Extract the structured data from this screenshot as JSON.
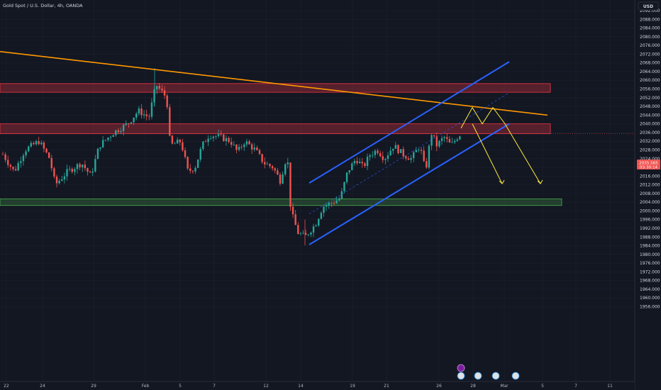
{
  "header": {
    "symbol_title": "Gold Spot / U.S. Dollar, 4h, OANDA"
  },
  "currency_button": "USD",
  "price_label": {
    "price": "2035.565",
    "countdown": "03:30:14"
  },
  "colors": {
    "background": "#131722",
    "up": "#26a69a",
    "down": "#ef5350",
    "channel": "#2962ff",
    "trendline": "#ff9800",
    "projection": "#ffeb3b",
    "resistance_zone": "#f23645",
    "support_zone": "#4caf50",
    "axis_text": "#d1d4dc"
  },
  "chart_data": {
    "type": "candlestick",
    "title": "Gold Spot / U.S. Dollar, 4h, OANDA",
    "timeframe": "4h",
    "y_axis": {
      "unit": "USD",
      "range": [
        1953,
        2094
      ],
      "ticks": [
        "2092.000",
        "2088.000",
        "2084.000",
        "2080.000",
        "2076.000",
        "2072.000",
        "2068.000",
        "2064.000",
        "2060.000",
        "2056.000",
        "2052.000",
        "2048.000",
        "2044.000",
        "2040.000",
        "2036.000",
        "2032.000",
        "2028.000",
        "2024.000",
        "2020.000",
        "2016.000",
        "2012.000",
        "2008.000",
        "2004.000",
        "2000.000",
        "1996.000",
        "1992.000",
        "1988.000",
        "1984.000",
        "1980.000",
        "1976.000",
        "1972.000",
        "1968.000",
        "1964.000",
        "1960.000",
        "1956.000"
      ]
    },
    "x_axis": {
      "ticks": [
        "22",
        "24",
        "29",
        "Feb",
        "5",
        "7",
        "12",
        "14",
        "19",
        "21",
        "26",
        "28",
        "Mar",
        "5",
        "7",
        "11"
      ]
    },
    "key_candles": [
      {
        "label": "late Jan swing high",
        "high": 2065.5
      },
      {
        "label": "Feb 14 swing low",
        "low": 1984.2
      },
      {
        "label": "last close",
        "close": 2035.565
      }
    ],
    "zones": [
      {
        "name": "upper resistance",
        "low": 2054.5,
        "high": 2058.5
      },
      {
        "name": "resistance",
        "low": 2035.5,
        "high": 2040.0
      },
      {
        "name": "support",
        "low": 2002.5,
        "high": 2005.5
      }
    ],
    "trendline": {
      "name": "descending trendline",
      "from_price": 2073.2,
      "to_price": 2044.0
    },
    "channel": {
      "name": "ascending channel",
      "lower_from": 1984.5,
      "lower_to": 2040.0,
      "upper_from": 2012.8,
      "upper_to": 2068.5
    },
    "projections": [
      {
        "name": "projection A",
        "path_prices": [
          2038.0,
          2047.5,
          2040.0,
          2047.5,
          2040.0,
          2012.5
        ]
      },
      {
        "name": "projection B",
        "path_prices": [
          2040.0,
          2012.5
        ]
      }
    ]
  }
}
